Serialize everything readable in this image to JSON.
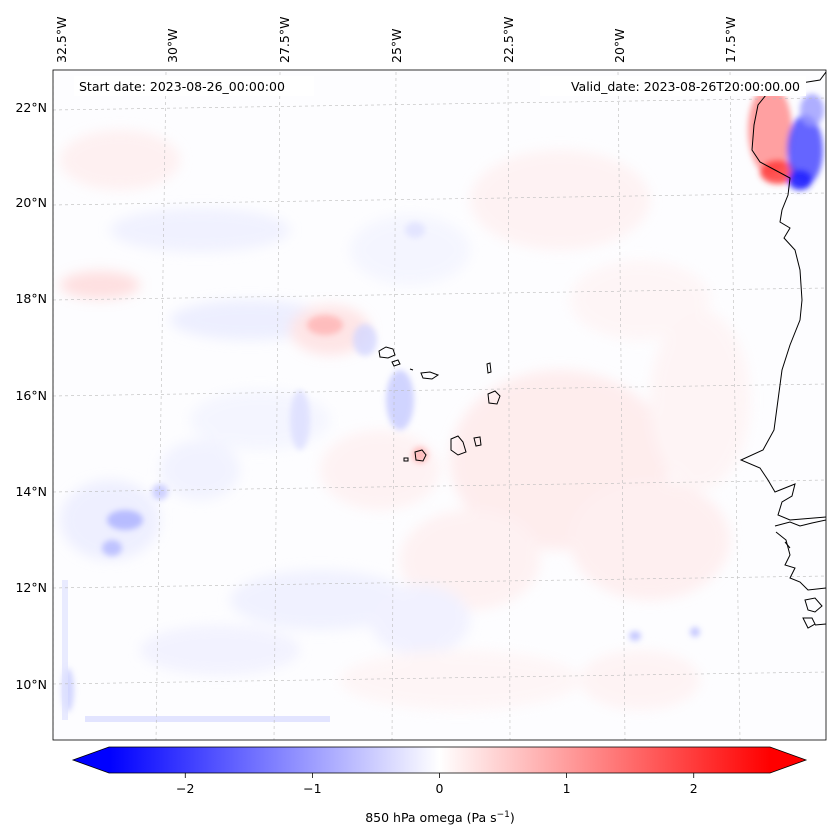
{
  "header": {
    "start_date": "Start date: 2023-08-26_00:00:00",
    "valid_date": "Valid_date: 2023-08-26T20:00:00.00"
  },
  "map": {
    "projection": "lambert-conformal-like",
    "lon_labels": [
      "32.5°W",
      "30°W",
      "27.5°W",
      "25°W",
      "22.5°W",
      "20°W",
      "17.5°W"
    ],
    "lat_labels": [
      "22°N",
      "20°N",
      "18°N",
      "16°N",
      "14°N",
      "12°N",
      "10°N"
    ],
    "gridlines": "dashed, light grey",
    "coastlines": [
      "Cape Verde islands",
      "West African coast (Mauritania, Senegal, Gambia, Guinea-Bissau)"
    ]
  },
  "field": {
    "variable": "850 hPa omega",
    "description": "mostly near-zero values with faint red (ascending/positive) and blue (negative) patches; strong dipole near the African coast at ~20–21°N"
  },
  "colorbar": {
    "label_main": "850 hPa omega (Pa s",
    "label_sup": "−1",
    "label_end": ")",
    "ticks": [
      "−2",
      "−1",
      "0",
      "1",
      "2"
    ],
    "range": [
      -2.6,
      2.6
    ],
    "extend": "both",
    "colors": {
      "negative": "#0000ff",
      "zero": "#ffffff",
      "positive": "#ff0000"
    }
  }
}
